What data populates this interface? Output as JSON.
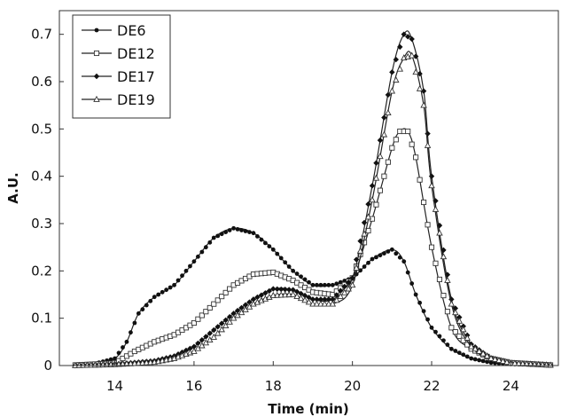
{
  "chart_data": {
    "type": "line",
    "title": "",
    "xlabel": "Time (min)",
    "ylabel": "A.U.",
    "xlim": [
      12.6,
      25.2
    ],
    "ylim": [
      0,
      0.75
    ],
    "xticks": [
      14,
      16,
      18,
      20,
      22,
      24
    ],
    "yticks": [
      0,
      0.1,
      0.2,
      0.3,
      0.4,
      0.5,
      0.6,
      0.7
    ],
    "grid": false,
    "legend_position": "top-left",
    "series": [
      {
        "name": "DE6",
        "marker": "filled-circle",
        "points": [
          [
            13,
            0.002
          ],
          [
            13.5,
            0.004
          ],
          [
            14,
            0.015
          ],
          [
            14.3,
            0.05
          ],
          [
            14.6,
            0.11
          ],
          [
            15,
            0.145
          ],
          [
            15.5,
            0.17
          ],
          [
            16,
            0.22
          ],
          [
            16.5,
            0.27
          ],
          [
            17,
            0.29
          ],
          [
            17.5,
            0.28
          ],
          [
            18,
            0.245
          ],
          [
            18.5,
            0.2
          ],
          [
            19,
            0.17
          ],
          [
            19.5,
            0.17
          ],
          [
            20,
            0.185
          ],
          [
            20.5,
            0.225
          ],
          [
            21,
            0.245
          ],
          [
            21.3,
            0.22
          ],
          [
            21.6,
            0.15
          ],
          [
            22,
            0.08
          ],
          [
            22.5,
            0.035
          ],
          [
            23,
            0.015
          ],
          [
            23.5,
            0.006
          ],
          [
            24,
            0.003
          ],
          [
            25,
            0.001
          ]
        ]
      },
      {
        "name": "DE12",
        "marker": "open-square",
        "points": [
          [
            13,
            0.001
          ],
          [
            14,
            0.005
          ],
          [
            14.5,
            0.03
          ],
          [
            15,
            0.05
          ],
          [
            15.5,
            0.065
          ],
          [
            16,
            0.09
          ],
          [
            16.5,
            0.13
          ],
          [
            17,
            0.17
          ],
          [
            17.5,
            0.193
          ],
          [
            18,
            0.197
          ],
          [
            18.5,
            0.18
          ],
          [
            19,
            0.155
          ],
          [
            19.5,
            0.15
          ],
          [
            20,
            0.185
          ],
          [
            20.5,
            0.31
          ],
          [
            21,
            0.46
          ],
          [
            21.2,
            0.495
          ],
          [
            21.4,
            0.495
          ],
          [
            21.6,
            0.44
          ],
          [
            22,
            0.25
          ],
          [
            22.5,
            0.08
          ],
          [
            23,
            0.035
          ],
          [
            23.5,
            0.015
          ],
          [
            24,
            0.006
          ],
          [
            25,
            0.001
          ]
        ]
      },
      {
        "name": "DE17",
        "marker": "filled-diamond",
        "points": [
          [
            13,
            0.0
          ],
          [
            14,
            0.003
          ],
          [
            15,
            0.01
          ],
          [
            15.5,
            0.02
          ],
          [
            16,
            0.04
          ],
          [
            16.5,
            0.075
          ],
          [
            17,
            0.11
          ],
          [
            17.5,
            0.14
          ],
          [
            18,
            0.162
          ],
          [
            18.5,
            0.16
          ],
          [
            19,
            0.14
          ],
          [
            19.5,
            0.14
          ],
          [
            20,
            0.185
          ],
          [
            20.5,
            0.38
          ],
          [
            21,
            0.62
          ],
          [
            21.3,
            0.7
          ],
          [
            21.5,
            0.69
          ],
          [
            21.8,
            0.58
          ],
          [
            22,
            0.4
          ],
          [
            22.5,
            0.14
          ],
          [
            23,
            0.045
          ],
          [
            23.5,
            0.015
          ],
          [
            24,
            0.005
          ],
          [
            25,
            0.001
          ]
        ]
      },
      {
        "name": "DE19",
        "marker": "open-triangle",
        "points": [
          [
            13,
            0.0
          ],
          [
            14,
            0.002
          ],
          [
            15,
            0.007
          ],
          [
            15.5,
            0.015
          ],
          [
            16,
            0.03
          ],
          [
            16.5,
            0.06
          ],
          [
            17,
            0.1
          ],
          [
            17.5,
            0.13
          ],
          [
            18,
            0.148
          ],
          [
            18.5,
            0.15
          ],
          [
            19,
            0.13
          ],
          [
            19.5,
            0.13
          ],
          [
            20,
            0.17
          ],
          [
            20.5,
            0.35
          ],
          [
            21,
            0.58
          ],
          [
            21.3,
            0.65
          ],
          [
            21.5,
            0.655
          ],
          [
            21.8,
            0.55
          ],
          [
            22,
            0.38
          ],
          [
            22.5,
            0.13
          ],
          [
            23,
            0.04
          ],
          [
            23.5,
            0.015
          ],
          [
            24,
            0.005
          ],
          [
            25,
            0.001
          ]
        ]
      }
    ]
  }
}
